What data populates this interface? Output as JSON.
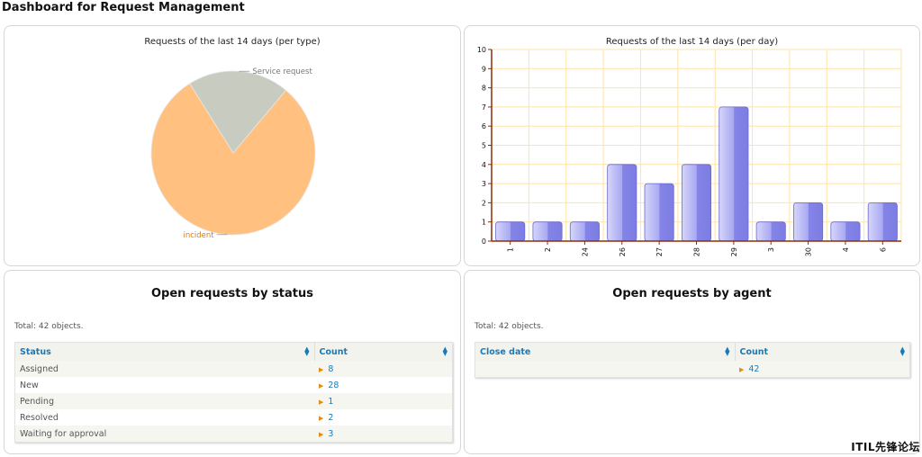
{
  "page": {
    "title": "Dashboard for Request Management"
  },
  "pie_chart": {
    "title": "Requests of the last 14 days (per type)"
  },
  "bar_chart": {
    "title": "Requests of the last 14 days (per day)"
  },
  "chart_data": [
    {
      "type": "pie",
      "title": "Requests of the last 14 days (per type)",
      "slices": [
        {
          "label": "incident",
          "value": 80,
          "color": "#ffc080"
        },
        {
          "label": "Service request",
          "value": 20,
          "color": "#c8cbc0"
        }
      ],
      "label_colors": {
        "incident": "#e07a10",
        "Service request": "#777777"
      }
    },
    {
      "type": "bar",
      "title": "Requests of the last 14 days (per day)",
      "categories": [
        "1",
        "2",
        "24",
        "26",
        "27",
        "28",
        "29",
        "3",
        "30",
        "4",
        "6"
      ],
      "values": [
        1,
        1,
        1,
        4,
        3,
        4,
        7,
        1,
        2,
        1,
        2
      ],
      "ylim": [
        0,
        10
      ],
      "yticks": [
        "0",
        "1",
        "2",
        "3",
        "4",
        "5",
        "6",
        "7",
        "8",
        "9",
        "10"
      ],
      "grid": true,
      "bar_color": "#8484e8",
      "grid_color": "#ffe3a8",
      "axis_color": "#8b2e0a"
    }
  ],
  "status_section": {
    "title": "Open requests by status",
    "total": "Total: 42 objects.",
    "columns": [
      "Status",
      "Count"
    ],
    "rows": [
      {
        "status": "Assigned",
        "count": "8"
      },
      {
        "status": "New",
        "count": "28"
      },
      {
        "status": "Pending",
        "count": "1"
      },
      {
        "status": "Resolved",
        "count": "2"
      },
      {
        "status": "Waiting for approval",
        "count": "3"
      }
    ]
  },
  "agent_section": {
    "title": "Open requests by agent",
    "total": "Total: 42 objects.",
    "columns": [
      "Close date",
      "Count"
    ],
    "rows": [
      {
        "close_date": "",
        "count": "42"
      }
    ]
  },
  "icons": {
    "sort": "sort-arrows-icon",
    "row_arrow": "triangle-right-icon"
  },
  "watermark": "ITIL先锋论坛"
}
